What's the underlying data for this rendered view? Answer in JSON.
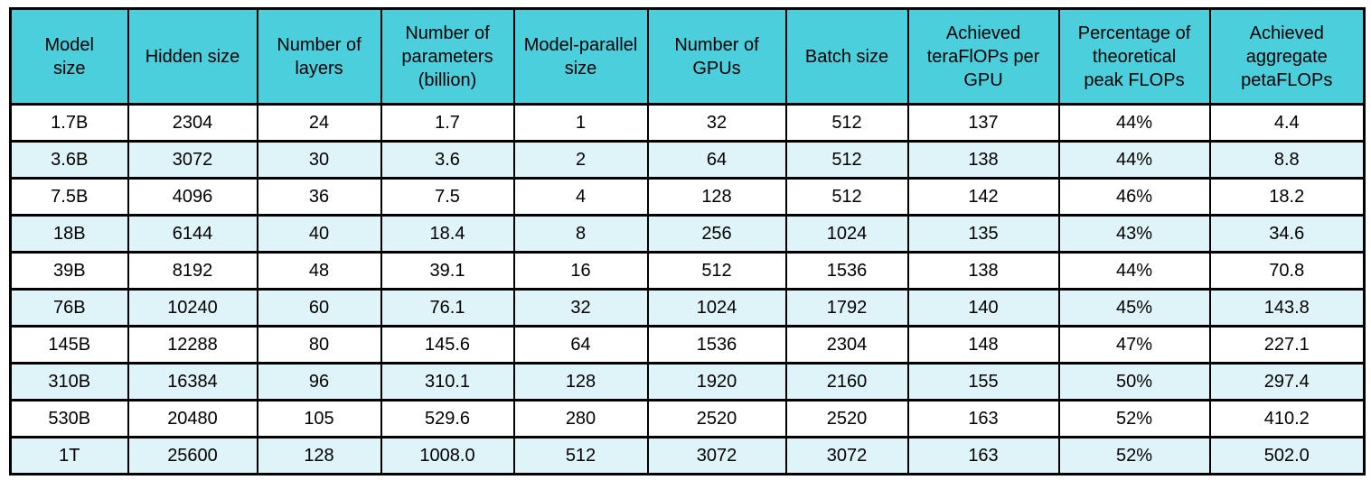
{
  "chart_data": {
    "type": "table",
    "title": "",
    "columns": [
      "Model\nsize",
      "Hidden size",
      "Number of\nlayers",
      "Number of\nparameters\n(billion)",
      "Model-parallel\nsize",
      "Number of\nGPUs",
      "Batch size",
      "Achieved\nteraFlOPs per\nGPU",
      "Percentage of\ntheoretical\npeak FLOPs",
      "Achieved\naggregate\npetaFLOPs"
    ],
    "rows": [
      [
        "1.7B",
        "2304",
        "24",
        "1.7",
        "1",
        "32",
        "512",
        "137",
        "44%",
        "4.4"
      ],
      [
        "3.6B",
        "3072",
        "30",
        "3.6",
        "2",
        "64",
        "512",
        "138",
        "44%",
        "8.8"
      ],
      [
        "7.5B",
        "4096",
        "36",
        "7.5",
        "4",
        "128",
        "512",
        "142",
        "46%",
        "18.2"
      ],
      [
        "18B",
        "6144",
        "40",
        "18.4",
        "8",
        "256",
        "1024",
        "135",
        "43%",
        "34.6"
      ],
      [
        "39B",
        "8192",
        "48",
        "39.1",
        "16",
        "512",
        "1536",
        "138",
        "44%",
        "70.8"
      ],
      [
        "76B",
        "10240",
        "60",
        "76.1",
        "32",
        "1024",
        "1792",
        "140",
        "45%",
        "143.8"
      ],
      [
        "145B",
        "12288",
        "80",
        "145.6",
        "64",
        "1536",
        "2304",
        "148",
        "47%",
        "227.1"
      ],
      [
        "310B",
        "16384",
        "96",
        "310.1",
        "128",
        "1920",
        "2160",
        "155",
        "50%",
        "297.4"
      ],
      [
        "530B",
        "20480",
        "105",
        "529.6",
        "280",
        "2520",
        "2520",
        "163",
        "52%",
        "410.2"
      ],
      [
        "1T",
        "25600",
        "128",
        "1008.0",
        "512",
        "3072",
        "3072",
        "163",
        "52%",
        "502.0"
      ]
    ],
    "layout": {
      "legend": "none",
      "grid": "full black cell borders",
      "striped_row_indices": [
        1,
        3,
        5,
        7,
        9
      ]
    }
  },
  "colors": {
    "header_bg": "#4CCFDD",
    "stripe_bg": "#DFF4F8",
    "row_bg": "#FFFFFF",
    "border_color": "#000000",
    "text_color": "#000000"
  }
}
